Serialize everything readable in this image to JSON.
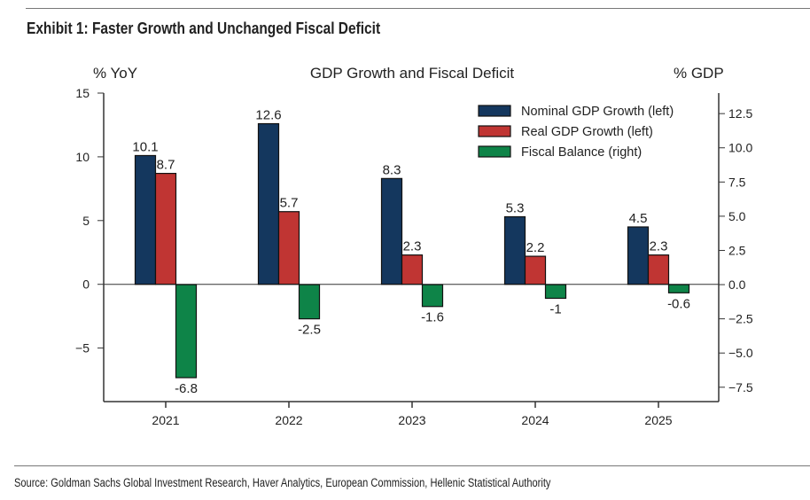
{
  "exhibit_title": "Exhibit 1: Faster Growth and Unchanged Fiscal Deficit",
  "source": "Source: Goldman Sachs Global Investment Research, Haver Analytics, European Commission, Hellenic Statistical Authority",
  "chart_data": {
    "type": "bar",
    "title": "GDP Growth and Fiscal Deficit",
    "ylabel_left": "% YoY",
    "ylabel_right": "% GDP",
    "categories": [
      "2021",
      "2022",
      "2023",
      "2024",
      "2025"
    ],
    "series": [
      {
        "name": "Nominal GDP Growth (left)",
        "axis": "left",
        "color": "#14375e",
        "values": [
          10.1,
          12.6,
          8.3,
          5.3,
          4.5
        ],
        "labels": [
          "10.1",
          "12.6",
          "8.3",
          "5.3",
          "4.5"
        ]
      },
      {
        "name": "Real GDP Growth (left)",
        "axis": "left",
        "color": "#c03533",
        "values": [
          8.7,
          5.7,
          2.3,
          2.2,
          2.3
        ],
        "labels": [
          "8.7",
          "5.7",
          "2.3",
          "2.2",
          "2.3"
        ]
      },
      {
        "name": "Fiscal Balance (right)",
        "axis": "right",
        "color": "#0e8448",
        "values": [
          -6.8,
          -2.5,
          -1.6,
          -1,
          -0.6
        ],
        "labels": [
          "-6.8",
          "-2.5",
          "-1.6",
          "-1",
          "-0.6"
        ]
      }
    ],
    "ylim_left": [
      -9.2,
      15
    ],
    "ylim_right": [
      -8.55,
      14
    ],
    "yticks_left": [
      "15",
      "10",
      "5",
      "0",
      "−5"
    ],
    "yticks_left_values": [
      15,
      10,
      5,
      0,
      -5
    ],
    "yticks_right": [
      "12.5",
      "10.0",
      "7.5",
      "5.0",
      "2.5",
      "0.0",
      "−2.5",
      "−5.0",
      "−7.5"
    ],
    "yticks_right_values": [
      12.5,
      10,
      7.5,
      5,
      2.5,
      0,
      -2.5,
      -5,
      -7.5
    ],
    "legend_position": "top-right",
    "grid": false
  }
}
